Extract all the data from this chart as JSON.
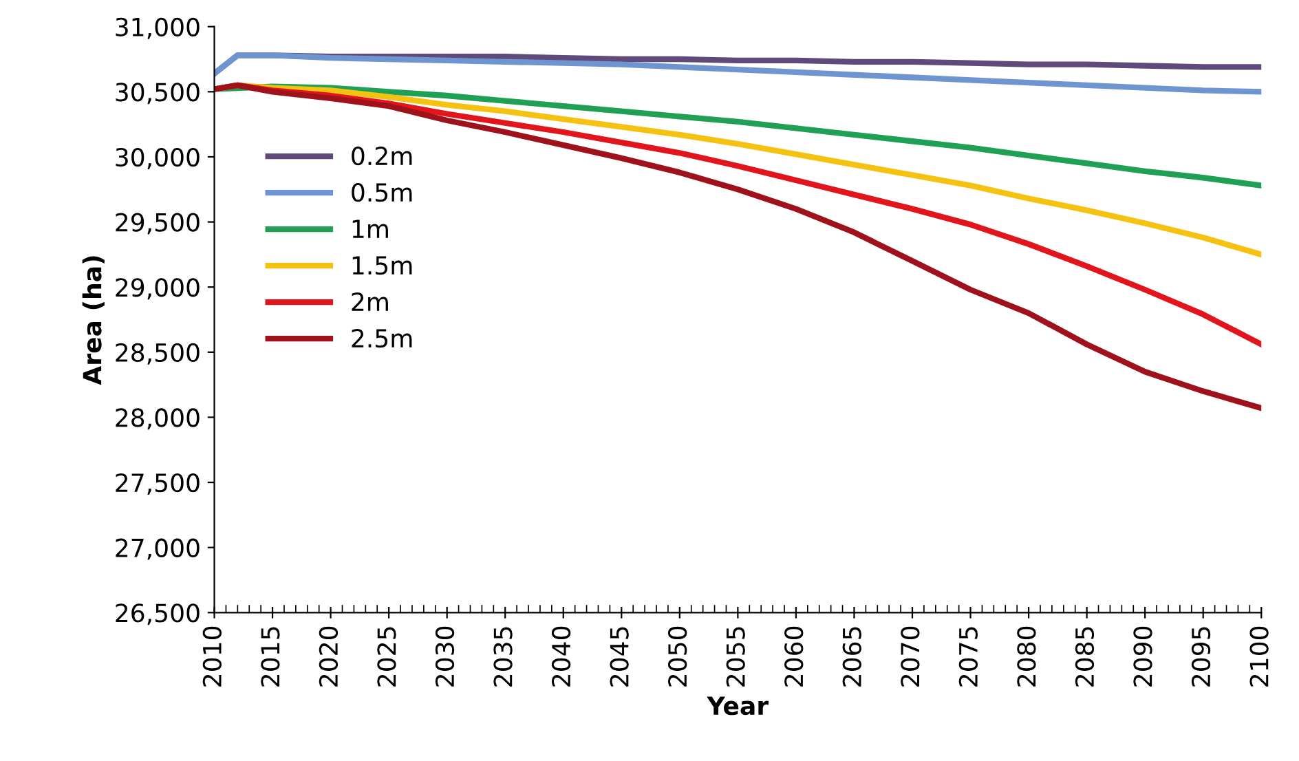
{
  "chart_data": {
    "type": "line",
    "xlabel": "Year",
    "ylabel": "Area (ha)",
    "xlim": [
      2010,
      2100
    ],
    "xticks": [
      2010,
      2015,
      2020,
      2025,
      2030,
      2035,
      2040,
      2045,
      2050,
      2055,
      2060,
      2065,
      2070,
      2075,
      2080,
      2085,
      2090,
      2095,
      2100
    ],
    "ylim": [
      26500,
      31000
    ],
    "yticks": [
      {
        "value": 26500,
        "label": "26,500"
      },
      {
        "value": 27000,
        "label": "27,000"
      },
      {
        "value": 27500,
        "label": "27,500"
      },
      {
        "value": 28000,
        "label": "28,000"
      },
      {
        "value": 28500,
        "label": "28,500"
      },
      {
        "value": 29000,
        "label": "29,000"
      },
      {
        "value": 29500,
        "label": "29,500"
      },
      {
        "value": 30000,
        "label": "30,000"
      },
      {
        "value": 30500,
        "label": "30,500"
      },
      {
        "value": 31000,
        "label": "31,000"
      }
    ],
    "grid": false,
    "legend": "left",
    "marker": "none",
    "line_style": "solid",
    "x": [
      2010,
      2012,
      2015,
      2020,
      2025,
      2030,
      2035,
      2040,
      2045,
      2050,
      2055,
      2060,
      2065,
      2070,
      2075,
      2080,
      2085,
      2090,
      2095,
      2100
    ],
    "series": [
      {
        "name": "0.2m",
        "color": "#604a7b",
        "values": [
          30640,
          30780,
          30780,
          30770,
          30770,
          30770,
          30770,
          30760,
          30750,
          30750,
          30740,
          30740,
          30730,
          30730,
          30720,
          30710,
          30710,
          30700,
          30690,
          30690
        ]
      },
      {
        "name": "0.5m",
        "color": "#6f95d0",
        "values": [
          30640,
          30780,
          30780,
          30760,
          30750,
          30740,
          30730,
          30720,
          30710,
          30690,
          30670,
          30650,
          30630,
          30610,
          30590,
          30570,
          30550,
          30530,
          30510,
          30500
        ]
      },
      {
        "name": "1m",
        "color": "#1fa055",
        "x": [
          2010,
          2015,
          2020,
          2025,
          2030,
          2035,
          2040,
          2045,
          2050,
          2055,
          2060,
          2065,
          2070,
          2075,
          2080,
          2085,
          2090,
          2095,
          2100
        ],
        "values": [
          30520,
          30540,
          30530,
          30500,
          30470,
          30430,
          30390,
          30350,
          30310,
          30270,
          30220,
          30170,
          30120,
          30070,
          30010,
          29950,
          29890,
          29840,
          29780
        ]
      },
      {
        "name": "1.5m",
        "color": "#f5c211",
        "values": [
          30520,
          30550,
          30530,
          30510,
          30460,
          30400,
          30350,
          30290,
          30230,
          30170,
          30100,
          30020,
          29940,
          29860,
          29780,
          29680,
          29590,
          29490,
          29380,
          29250
        ]
      },
      {
        "name": "2m",
        "color": "#e3151c",
        "values": [
          30520,
          30550,
          30510,
          30470,
          30410,
          30330,
          30260,
          30190,
          30110,
          30030,
          29930,
          29820,
          29710,
          29600,
          29480,
          29330,
          29160,
          28980,
          28790,
          28560
        ]
      },
      {
        "name": "2.5m",
        "color": "#a0121b",
        "values": [
          30520,
          30550,
          30500,
          30450,
          30390,
          30280,
          30190,
          30090,
          29990,
          29880,
          29750,
          29600,
          29420,
          29200,
          28980,
          28800,
          28560,
          28350,
          28200,
          28070
        ]
      }
    ]
  }
}
